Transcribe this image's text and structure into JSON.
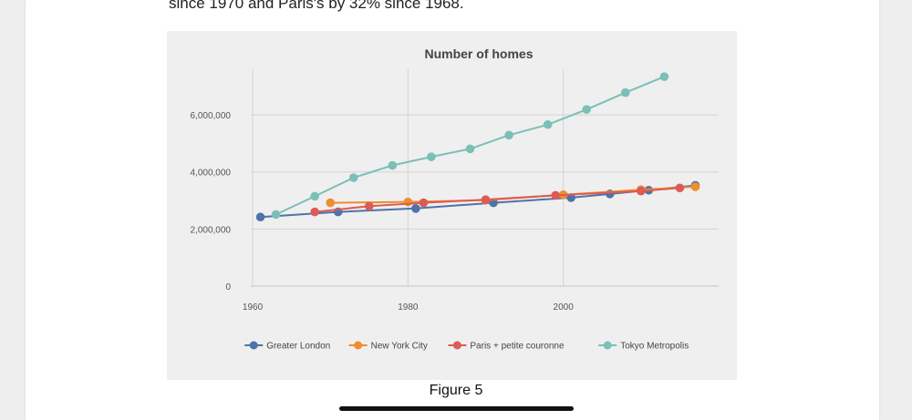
{
  "document": {
    "intro_text": "since 1970 and Paris's by 32% since 1968.",
    "figure_caption": "Figure 5"
  },
  "chart_data": {
    "type": "line",
    "title": "Number of homes",
    "xlabel": "",
    "ylabel": "",
    "xlim": [
      1958,
      2020
    ],
    "ylim": [
      0,
      7600000
    ],
    "x_ticks": [
      1960,
      1980,
      2000
    ],
    "y_ticks": [
      0,
      2000000,
      4000000,
      6000000
    ],
    "y_tick_labels": [
      "0",
      "2,000,000",
      "4,000,000",
      "6,000,000"
    ],
    "grid": true,
    "legend_position": "bottom",
    "series": [
      {
        "name": "Greater London",
        "color": "#4e73a8",
        "points": [
          [
            1961,
            2420000
          ],
          [
            1971,
            2600000
          ],
          [
            1981,
            2720000
          ],
          [
            1991,
            2920000
          ],
          [
            2001,
            3100000
          ],
          [
            2006,
            3230000
          ],
          [
            2011,
            3360000
          ],
          [
            2017,
            3530000
          ]
        ]
      },
      {
        "name": "New York City",
        "color": "#ee8e2e",
        "points": [
          [
            1970,
            2920000
          ],
          [
            1980,
            2950000
          ],
          [
            1990,
            3010000
          ],
          [
            2000,
            3200000
          ],
          [
            2010,
            3380000
          ],
          [
            2017,
            3480000
          ]
        ]
      },
      {
        "name": "Paris + petite couronne",
        "color": "#de5a54",
        "points": [
          [
            1968,
            2600000
          ],
          [
            1975,
            2800000
          ],
          [
            1982,
            2920000
          ],
          [
            1990,
            3030000
          ],
          [
            1999,
            3180000
          ],
          [
            2010,
            3330000
          ],
          [
            2015,
            3440000
          ]
        ]
      },
      {
        "name": "Tokyo Metropolis",
        "color": "#7bbfb7",
        "points": [
          [
            1963,
            2510000
          ],
          [
            1968,
            3150000
          ],
          [
            1973,
            3800000
          ],
          [
            1978,
            4230000
          ],
          [
            1983,
            4530000
          ],
          [
            1988,
            4810000
          ],
          [
            1993,
            5290000
          ],
          [
            1998,
            5660000
          ],
          [
            2003,
            6190000
          ],
          [
            2008,
            6780000
          ],
          [
            2013,
            7340000
          ]
        ]
      }
    ]
  }
}
